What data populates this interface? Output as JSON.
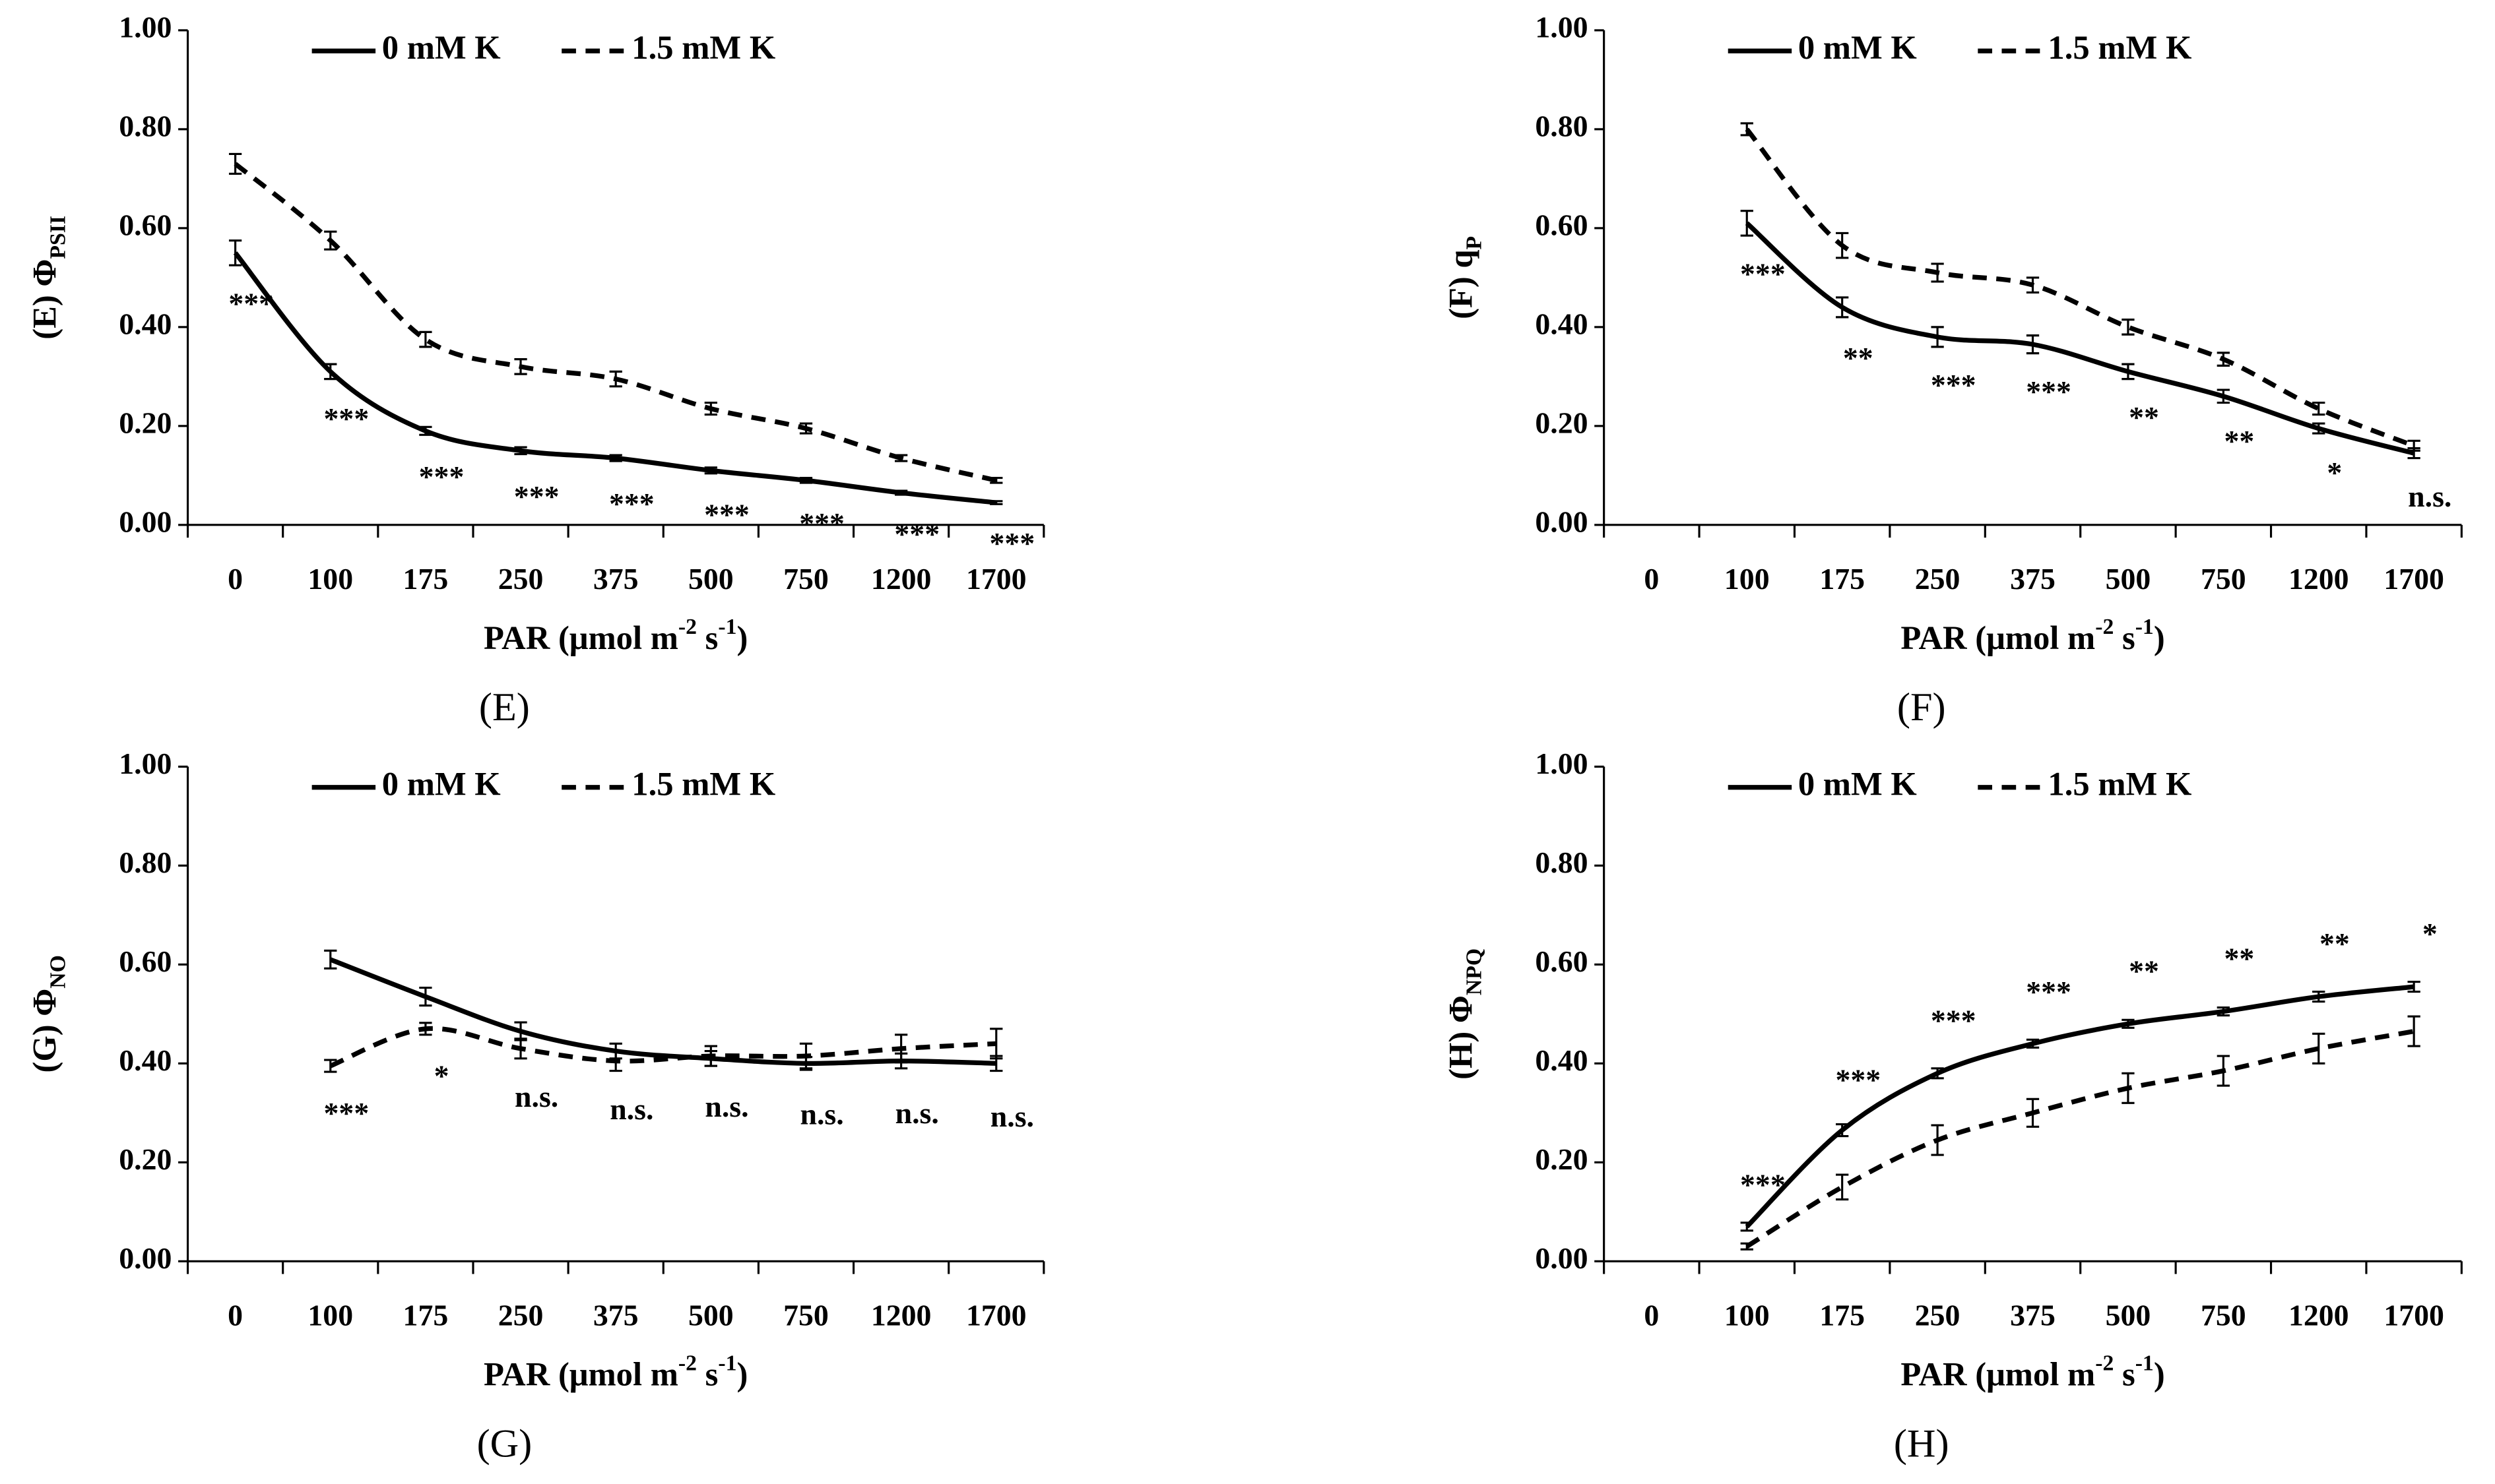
{
  "chart_data": [
    {
      "type": "line",
      "ylabel": "(E) Φ",
      "ylabel_subscript": "PSII",
      "xlabel_parts": [
        {
          "text": "PAR (μmol m"
        },
        {
          "text": "-2",
          "sup": true
        },
        {
          "text": " s"
        },
        {
          "text": "-1",
          "sup": true
        },
        {
          "text": ")"
        }
      ],
      "caption": "(E)",
      "categories": [
        "0",
        "100",
        "175",
        "250",
        "375",
        "500",
        "750",
        "1200",
        "1700"
      ],
      "series": [
        {
          "name": "0 mM K",
          "color": "#000000",
          "dash": false,
          "values": [
            0.55,
            0.31,
            0.19,
            0.15,
            0.135,
            0.11,
            0.09,
            0.065,
            0.045
          ],
          "errors": [
            0.025,
            0.015,
            0.008,
            0.007,
            0.006,
            0.006,
            0.005,
            0.004,
            0.003
          ]
        },
        {
          "name": "1.5 mM K",
          "color": "#000000",
          "dash": true,
          "values": [
            0.73,
            0.575,
            0.375,
            0.32,
            0.295,
            0.235,
            0.195,
            0.135,
            0.09
          ],
          "errors": [
            0.02,
            0.018,
            0.015,
            0.015,
            0.015,
            0.012,
            0.01,
            0.006,
            0.005
          ]
        }
      ],
      "annotations": [
        "***",
        "***",
        "***",
        "***",
        "***",
        "***",
        "***",
        "***",
        "***"
      ],
      "annotation_position": "below",
      "ylim": [
        0,
        1
      ],
      "yticks": [
        {
          "value": 0,
          "label": "0.00"
        },
        {
          "value": 0.2,
          "label": "0.20"
        },
        {
          "value": 0.4,
          "label": "0.40"
        },
        {
          "value": 0.6,
          "label": "0.60"
        },
        {
          "value": 0.8,
          "label": "0.80"
        },
        {
          "value": 1,
          "label": "1.00"
        }
      ]
    },
    {
      "type": "line",
      "ylabel": "(F) q",
      "ylabel_subscript": "P",
      "xlabel_parts": [
        {
          "text": "PAR (μmol m"
        },
        {
          "text": "-2",
          "sup": true
        },
        {
          "text": " s"
        },
        {
          "text": "-1",
          "sup": true
        },
        {
          "text": ")"
        }
      ],
      "caption": "(F)",
      "categories": [
        "0",
        "100",
        "175",
        "250",
        "375",
        "500",
        "750",
        "1200",
        "1700"
      ],
      "series": [
        {
          "name": "0 mM  K",
          "color": "#000000",
          "dash": false,
          "values": [
            null,
            0.61,
            0.44,
            0.38,
            0.365,
            0.31,
            0.26,
            0.195,
            0.145
          ],
          "errors": [
            null,
            0.025,
            0.02,
            0.02,
            0.018,
            0.015,
            0.013,
            0.01,
            0.01
          ]
        },
        {
          "name": "1.5 mM K",
          "color": "#000000",
          "dash": true,
          "values": [
            null,
            0.8,
            0.565,
            0.51,
            0.485,
            0.4,
            0.335,
            0.235,
            0.16
          ],
          "errors": [
            null,
            0.012,
            0.025,
            0.018,
            0.015,
            0.015,
            0.013,
            0.012,
            0.01
          ]
        }
      ],
      "annotations": [
        null,
        "***",
        "**",
        "***",
        "***",
        "**",
        "**",
        "*",
        "n.s."
      ],
      "annotation_position": "below",
      "ylim": [
        0,
        1
      ],
      "yticks": [
        {
          "value": 0,
          "label": "0.00"
        },
        {
          "value": 0.2,
          "label": "0.20"
        },
        {
          "value": 0.4,
          "label": "0.40"
        },
        {
          "value": 0.6,
          "label": "0.60"
        },
        {
          "value": 0.8,
          "label": "0.80"
        },
        {
          "value": 1,
          "label": "1.00"
        }
      ]
    },
    {
      "type": "line",
      "ylabel": "(G) Φ",
      "ylabel_subscript": "NO",
      "xlabel_parts": [
        {
          "text": "PAR (μmol m"
        },
        {
          "text": "-2",
          "sup": true
        },
        {
          "text": " s"
        },
        {
          "text": "-1",
          "sup": true
        },
        {
          "text": ")"
        }
      ],
      "caption": "(G)",
      "categories": [
        "0",
        "100",
        "175",
        "250",
        "375",
        "500",
        "750",
        "1200",
        "1700"
      ],
      "series": [
        {
          "name": "0 mM K",
          "color": "#000000",
          "dash": false,
          "values": [
            null,
            0.61,
            0.535,
            0.465,
            0.425,
            0.41,
            0.4,
            0.405,
            0.4
          ],
          "errors": [
            null,
            0.018,
            0.018,
            0.018,
            0.015,
            0.015,
            0.013,
            0.015,
            0.015
          ]
        },
        {
          "name": "1.5 mM K",
          "color": "#000000",
          "dash": true,
          "values": [
            null,
            0.395,
            0.47,
            0.43,
            0.405,
            0.415,
            0.415,
            0.43,
            0.44
          ],
          "errors": [
            null,
            0.012,
            0.012,
            0.02,
            0.02,
            0.02,
            0.025,
            0.028,
            0.03
          ]
        }
      ],
      "annotations": [
        null,
        "***",
        "*",
        "n.s.",
        "n.s.",
        "n.s.",
        "n.s.",
        "n.s.",
        "n.s."
      ],
      "annotation_position": "below",
      "ylim": [
        0,
        1
      ],
      "yticks": [
        {
          "value": 0,
          "label": "0.00"
        },
        {
          "value": 0.2,
          "label": "0.20"
        },
        {
          "value": 0.4,
          "label": "0.40"
        },
        {
          "value": 0.6,
          "label": "0.60"
        },
        {
          "value": 0.8,
          "label": "0.80"
        },
        {
          "value": 1,
          "label": "1.00"
        }
      ]
    },
    {
      "type": "line",
      "ylabel": "(H) Φ",
      "ylabel_subscript": "NPQ",
      "xlabel_parts": [
        {
          "text": "PAR (μmol m"
        },
        {
          "text": "-2",
          "sup": true
        },
        {
          "text": " s"
        },
        {
          "text": "-1",
          "sup": true
        },
        {
          "text": ")"
        }
      ],
      "caption": "(H)",
      "categories": [
        "0",
        "100",
        "175",
        "250",
        "375",
        "500",
        "750",
        "1200",
        "1700"
      ],
      "series": [
        {
          "name": "0 mM K",
          "color": "#000000",
          "dash": false,
          "values": [
            null,
            0.07,
            0.265,
            0.38,
            0.44,
            0.48,
            0.505,
            0.535,
            0.555
          ],
          "errors": [
            null,
            0.008,
            0.012,
            0.01,
            0.008,
            0.008,
            0.008,
            0.01,
            0.01
          ]
        },
        {
          "name": "1.5 mM K",
          "color": "#000000",
          "dash": true,
          "values": [
            null,
            0.03,
            0.15,
            0.245,
            0.3,
            0.35,
            0.385,
            0.43,
            0.465
          ],
          "errors": [
            null,
            0.006,
            0.025,
            0.03,
            0.028,
            0.03,
            0.03,
            0.03,
            0.03
          ]
        }
      ],
      "annotations": [
        null,
        "***",
        "***",
        "***",
        "***",
        "**",
        "**",
        "**",
        "*"
      ],
      "annotation_position": "above",
      "ylim": [
        0,
        1
      ],
      "yticks": [
        {
          "value": 0,
          "label": "0.00"
        },
        {
          "value": 0.2,
          "label": "0.20"
        },
        {
          "value": 0.4,
          "label": "0.40"
        },
        {
          "value": 0.6,
          "label": "0.60"
        },
        {
          "value": 0.8,
          "label": "0.80"
        },
        {
          "value": 1,
          "label": "1.00"
        }
      ]
    }
  ]
}
